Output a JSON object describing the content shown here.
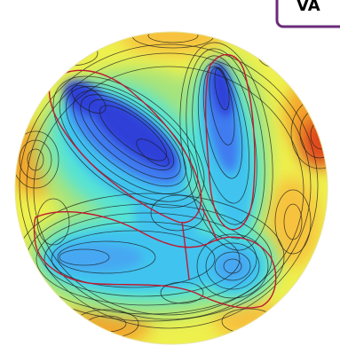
{
  "figure": {
    "label_tag": {
      "text": "VA",
      "border_color": "#6a2b7a",
      "text_color": "#000000"
    },
    "depiction": "footprint-contour-height-map",
    "palette": {
      "deep": "#2f3fd8",
      "mid_blue": "#3f7cf0",
      "cyan": "#3fc4ef",
      "aqua": "#55e3d6",
      "green": "#8ee08a",
      "yellow": "#eef04d",
      "orange": "#f4a52c",
      "red": "#e0481e",
      "contour": "#1a1a1a",
      "outline": "#c0192f"
    }
  }
}
